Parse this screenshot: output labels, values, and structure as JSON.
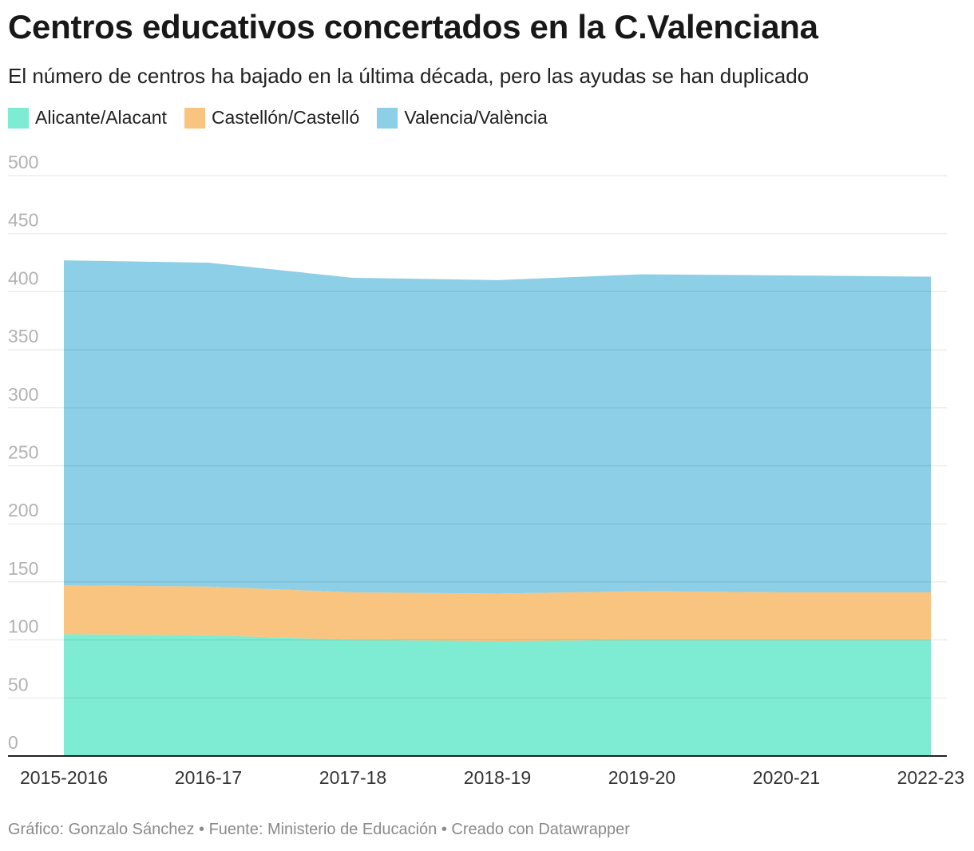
{
  "title": "Centros educativos concertados en la C.Valenciana",
  "subtitle": "El número de centros ha bajado en la última década, pero las ayudas se han duplicado",
  "footer": "Gráfico: Gonzalo Sánchez • Fuente: Ministerio de Educación  • Creado con Datawrapper",
  "colors": {
    "alicante": "#7eecd3",
    "castellon": "#f9c47f",
    "valencia": "#8dcfe6"
  },
  "chart_data": {
    "type": "area",
    "stacked": true,
    "categories": [
      "2015-2016",
      "2016-17",
      "2017-18",
      "2018-19",
      "2019-20",
      "2020-21",
      "2022-23"
    ],
    "series": [
      {
        "name": "Alicante/Alacant",
        "color": "#7eecd3",
        "values": [
          105,
          104,
          100,
          99,
          100,
          100,
          100
        ]
      },
      {
        "name": "Castellón/Castelló",
        "color": "#f9c47f",
        "values": [
          42,
          42,
          41,
          41,
          42,
          41,
          41
        ]
      },
      {
        "name": "Valencia/València",
        "color": "#8dcfe6",
        "values": [
          280,
          279,
          271,
          270,
          273,
          273,
          272
        ]
      }
    ],
    "ylim": [
      0,
      500
    ],
    "yticks": [
      0,
      50,
      100,
      150,
      200,
      250,
      300,
      350,
      400,
      450,
      500
    ],
    "grid": true,
    "legend": "top-left"
  }
}
